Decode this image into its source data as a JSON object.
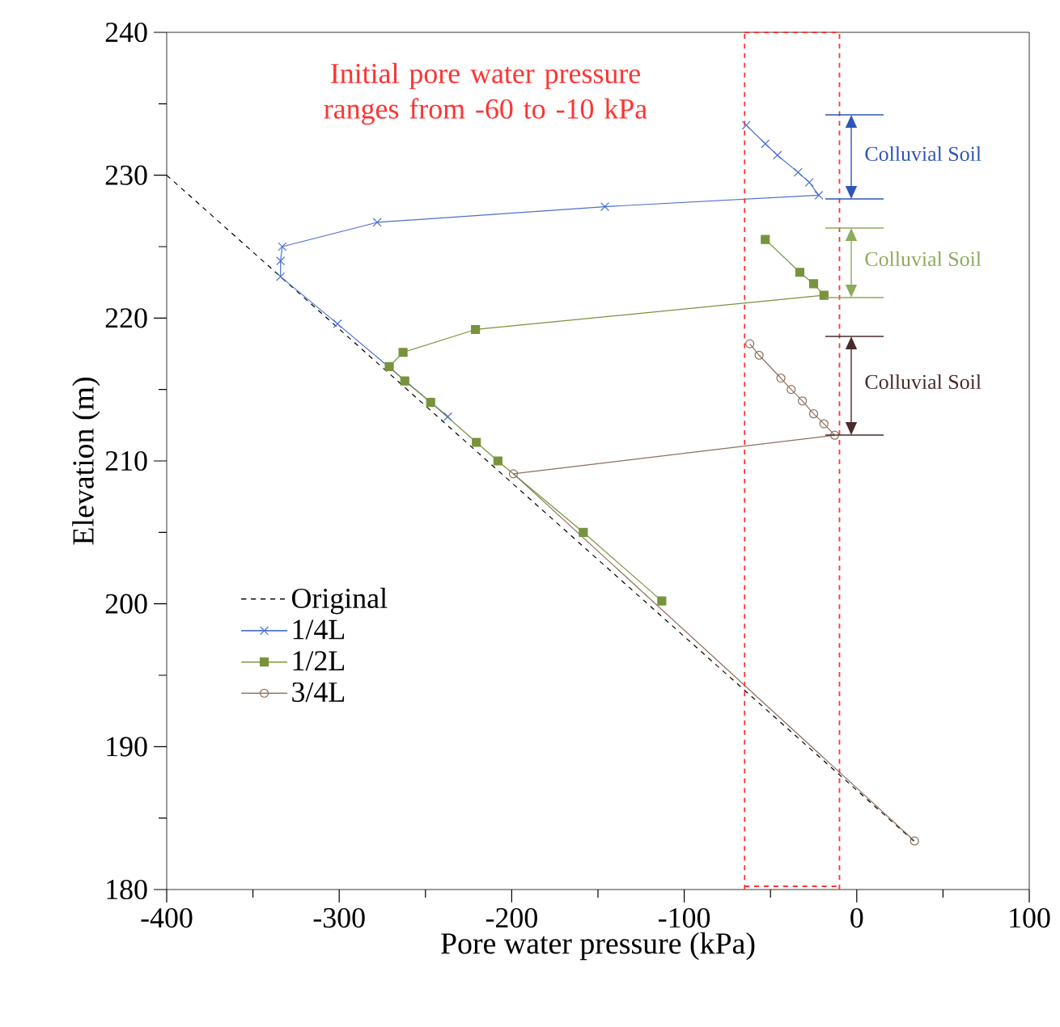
{
  "chart_data": {
    "type": "line",
    "xlabel": "Pore water pressure (kPa)",
    "ylabel": "Elevation (m)",
    "xlim": [
      -400,
      100
    ],
    "ylim": [
      180,
      240
    ],
    "xticks": [
      -400,
      -300,
      -200,
      -100,
      0,
      100
    ],
    "yticks": [
      180,
      190,
      200,
      210,
      220,
      230,
      240
    ],
    "legend": "bottom left",
    "grid": false,
    "series": [
      {
        "name": "Original",
        "color": "#000000",
        "line_style": "dashed",
        "marker": "none",
        "x": [
          -400,
          33
        ],
        "values": [
          230,
          183.4
        ]
      },
      {
        "name": "1/4L",
        "color": "#4a6fd0",
        "line_style": "solid",
        "marker": "cross",
        "x": [
          -64,
          -53,
          -46,
          -34,
          -27.5,
          -22,
          -146,
          -278,
          -333,
          -334,
          -334,
          -301,
          -237
        ],
        "values": [
          233.5,
          232.2,
          231.4,
          230.2,
          229.5,
          228.6,
          227.8,
          226.7,
          225,
          224,
          222.9,
          219.6,
          213.1
        ]
      },
      {
        "name": "1/2L",
        "color": "#77933c",
        "line_style": "solid",
        "marker": "square",
        "x": [
          -53,
          -33,
          -25,
          -19,
          -221,
          -263,
          -271,
          -262,
          -247,
          -220.5,
          -208,
          -158.5,
          -113
        ],
        "values": [
          225.5,
          223.2,
          222.4,
          221.6,
          219.2,
          217.6,
          216.6,
          215.6,
          214.1,
          211.3,
          210.0,
          205.0,
          200.2
        ]
      },
      {
        "name": "3/4L",
        "color": "#8c6e5a",
        "line_style": "solid",
        "marker": "circle",
        "x": [
          -62,
          -56.6,
          -44,
          -38,
          -31.5,
          -25,
          -19,
          -12.8,
          -199,
          33.5
        ],
        "values": [
          218.2,
          217.4,
          215.8,
          215.0,
          214.2,
          213.3,
          212.6,
          211.8,
          209.1,
          183.4
        ]
      }
    ],
    "ref_lines": [
      {
        "axis": "x",
        "value": -65,
        "color": "#ff3333",
        "line_style": "dashed"
      },
      {
        "axis": "x",
        "value": -10,
        "color": "#ff3333",
        "line_style": "dashed"
      }
    ],
    "annotations": [
      "Initial pore water pressure ranges from -60 to -10 kPa",
      "Colluvial Soil",
      "Colluvial Soil",
      "Colluvial Soil"
    ]
  }
}
